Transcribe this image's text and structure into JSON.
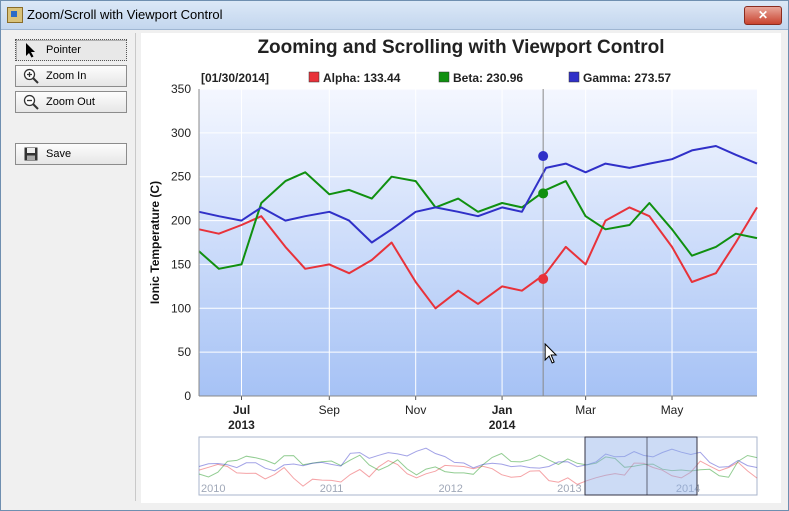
{
  "window": {
    "title": "Zoom/Scroll with Viewport Control",
    "close_label": "✕"
  },
  "toolbar": {
    "pointer_label": "Pointer",
    "zoom_in_label": "Zoom In",
    "zoom_out_label": "Zoom Out",
    "save_label": "Save"
  },
  "colors": {
    "alpha": "#e8323a",
    "beta": "#109010",
    "gamma": "#3030c8"
  },
  "chart_data": {
    "type": "line",
    "title": "Zooming and Scrolling with Viewport Control",
    "ylabel": "Ionic Temperature (C)",
    "ylim": [
      0,
      350
    ],
    "yticks": [
      0,
      50,
      100,
      150,
      200,
      250,
      300,
      350
    ],
    "xrange": [
      "2013-06-01",
      "2014-06-30"
    ],
    "xticks": [
      {
        "date": "2013-07-01",
        "label": "Jul",
        "year": "2013"
      },
      {
        "date": "2013-09-01",
        "label": "Sep",
        "year": ""
      },
      {
        "date": "2013-11-01",
        "label": "Nov",
        "year": ""
      },
      {
        "date": "2014-01-01",
        "label": "Jan",
        "year": "2014"
      },
      {
        "date": "2014-03-01",
        "label": "Mar",
        "year": ""
      },
      {
        "date": "2014-05-01",
        "label": "May",
        "year": ""
      }
    ],
    "grid": true,
    "cursor": {
      "date": "2014-01-30",
      "label": "[01/30/2014]",
      "values": {
        "alpha": 133.44,
        "beta": 230.96,
        "gamma": 273.57
      }
    },
    "x": [
      "2013-06-01",
      "2013-06-15",
      "2013-07-01",
      "2013-07-15",
      "2013-08-01",
      "2013-08-15",
      "2013-09-01",
      "2013-09-15",
      "2013-10-01",
      "2013-10-15",
      "2013-11-01",
      "2013-11-15",
      "2013-12-01",
      "2013-12-15",
      "2014-01-01",
      "2014-01-15",
      "2014-02-01",
      "2014-02-15",
      "2014-03-01",
      "2014-03-15",
      "2014-04-01",
      "2014-04-15",
      "2014-05-01",
      "2014-05-15",
      "2014-06-01",
      "2014-06-15",
      "2014-06-30"
    ],
    "series": [
      {
        "name": "Alpha",
        "key": "alpha",
        "values": [
          190,
          185,
          195,
          205,
          170,
          145,
          150,
          140,
          155,
          175,
          130,
          100,
          120,
          105,
          125,
          120,
          140,
          170,
          150,
          200,
          215,
          205,
          170,
          130,
          140,
          175,
          215
        ]
      },
      {
        "name": "Beta",
        "key": "beta",
        "values": [
          165,
          145,
          150,
          220,
          245,
          255,
          230,
          235,
          225,
          250,
          245,
          215,
          225,
          210,
          220,
          215,
          235,
          245,
          205,
          190,
          195,
          220,
          190,
          160,
          170,
          185,
          180
        ]
      },
      {
        "name": "Gamma",
        "key": "gamma",
        "values": [
          210,
          205,
          200,
          215,
          200,
          205,
          210,
          200,
          175,
          190,
          210,
          215,
          210,
          205,
          215,
          210,
          260,
          265,
          255,
          265,
          260,
          265,
          270,
          280,
          285,
          275,
          265
        ]
      }
    ]
  },
  "overview": {
    "year_labels": [
      "2010",
      "2011",
      "2012",
      "2013",
      "2014"
    ],
    "highlight_year": "2014"
  }
}
